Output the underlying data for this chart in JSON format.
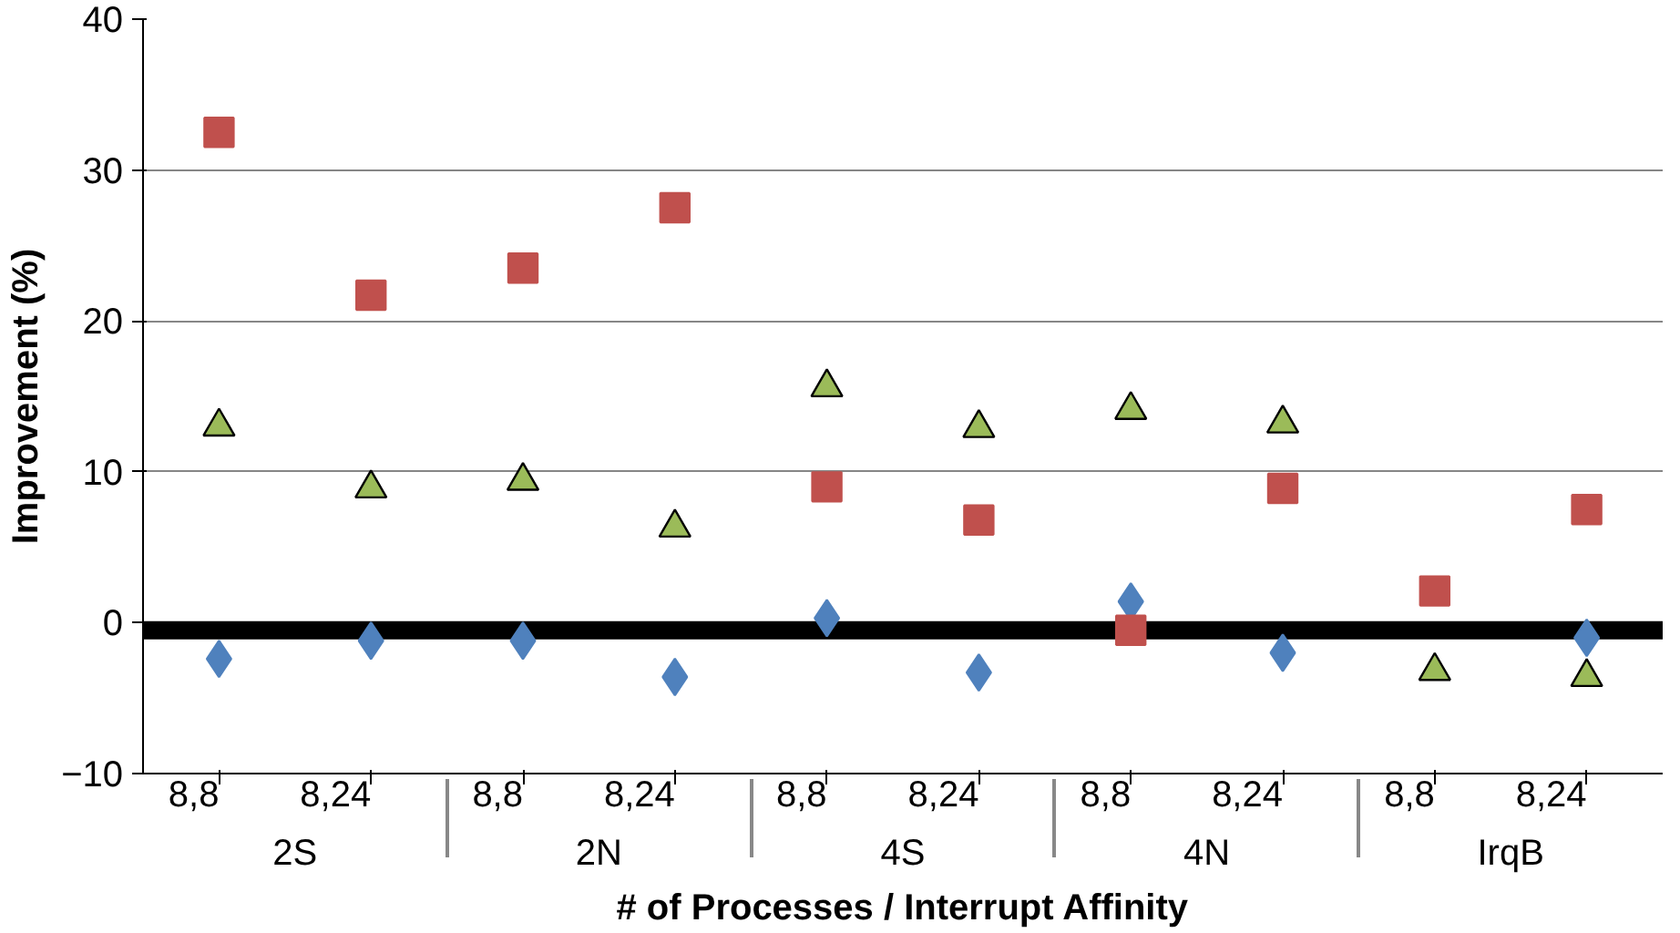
{
  "chart_data": {
    "type": "scatter",
    "xlabel": "# of Processes / Interrupt Affinity",
    "ylabel": "Improvement (%)",
    "categories": [
      "8,8",
      "8,24",
      "8,8",
      "8,24",
      "8,8",
      "8,24",
      "8,8",
      "8,24",
      "8,8",
      "8,24"
    ],
    "annotations": [
      "2S",
      "2N",
      "4S",
      "4N",
      "IrqB"
    ],
    "series": [
      {
        "color": "#4f81bd",
        "marker": "diamond",
        "values": [
          -2.4,
          -1.2,
          -1.2,
          -3.6,
          0.3,
          -3.3,
          1.4,
          -2.0,
          null,
          -1.0
        ]
      },
      {
        "color": "#c0504d",
        "marker": "square",
        "values": [
          32.5,
          21.7,
          23.5,
          27.5,
          9.0,
          6.8,
          -0.5,
          8.9,
          2.1,
          7.5
        ]
      },
      {
        "color": "#9bbb59",
        "marker": "triangle",
        "values": [
          13.0,
          8.9,
          9.4,
          6.3,
          15.6,
          12.9,
          14.1,
          13.2,
          -3.2,
          -3.6
        ]
      }
    ],
    "ylim": [
      -10,
      40
    ],
    "yticks": [
      -10,
      0,
      10,
      20,
      30,
      40
    ],
    "grid": "y",
    "ref_lines": [
      {
        "axis": "y",
        "value": -0.5,
        "color": "#000000"
      }
    ]
  }
}
